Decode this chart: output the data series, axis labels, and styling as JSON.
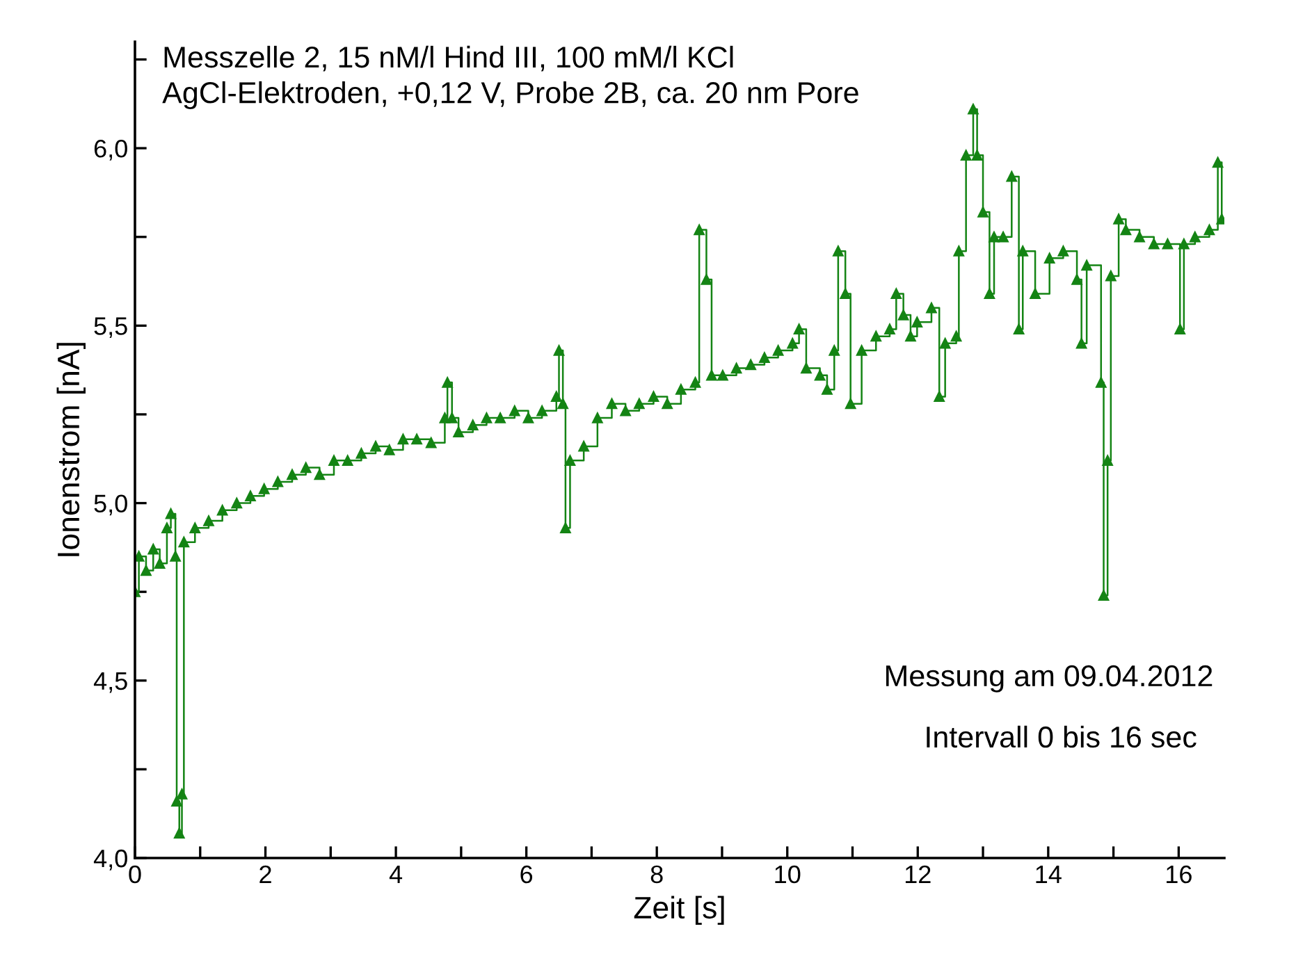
{
  "chart_data": {
    "type": "step",
    "title": "Messzelle 2, 15 nM/l Hind III, 100 mM/l KCl\nAgCl-Elektroden, +0,12 V, Probe 2B, ca. 20 nm Pore",
    "xlabel": "Zeit [s]",
    "ylabel": "Ionenstrom [nA]",
    "annotations": [
      "Messung am 09.04.2012",
      "Intervall 0 bis 16 sec"
    ],
    "x": [
      0.0,
      0.06,
      0.17,
      0.28,
      0.38,
      0.49,
      0.55,
      0.62,
      0.64,
      0.68,
      0.72,
      0.75,
      0.92,
      1.13,
      1.34,
      1.56,
      1.77,
      1.98,
      2.19,
      2.41,
      2.62,
      2.83,
      3.05,
      3.26,
      3.47,
      3.69,
      3.9,
      4.11,
      4.32,
      4.54,
      4.75,
      4.79,
      4.86,
      4.96,
      5.18,
      5.39,
      5.6,
      5.82,
      6.03,
      6.24,
      6.46,
      6.5,
      6.56,
      6.6,
      6.67,
      6.88,
      7.09,
      7.31,
      7.52,
      7.73,
      7.95,
      8.16,
      8.37,
      8.59,
      8.65,
      8.76,
      8.84,
      9.01,
      9.22,
      9.44,
      9.65,
      9.86,
      10.08,
      10.18,
      10.29,
      10.5,
      10.61,
      10.72,
      10.78,
      10.89,
      10.97,
      11.14,
      11.36,
      11.57,
      11.67,
      11.78,
      11.89,
      11.99,
      12.21,
      12.33,
      12.42,
      12.59,
      12.63,
      12.74,
      12.85,
      12.91,
      13.0,
      13.1,
      13.17,
      13.31,
      13.44,
      13.55,
      13.61,
      13.8,
      14.02,
      14.23,
      14.44,
      14.51,
      14.59,
      14.81,
      14.85,
      14.91,
      14.96,
      15.08,
      15.19,
      15.4,
      15.62,
      15.83,
      16.02,
      16.08,
      16.25,
      16.47,
      16.6,
      16.66
    ],
    "series": [
      {
        "color": "#148414",
        "values": [
          4.75,
          4.85,
          4.81,
          4.87,
          4.83,
          4.93,
          4.97,
          4.85,
          4.16,
          4.07,
          4.18,
          4.89,
          4.93,
          4.95,
          4.98,
          5.0,
          5.02,
          5.04,
          5.06,
          5.08,
          5.1,
          5.08,
          5.12,
          5.12,
          5.14,
          5.16,
          5.15,
          5.18,
          5.18,
          5.17,
          5.24,
          5.34,
          5.24,
          5.2,
          5.22,
          5.24,
          5.24,
          5.26,
          5.24,
          5.26,
          5.3,
          5.43,
          5.28,
          4.93,
          5.12,
          5.16,
          5.24,
          5.28,
          5.26,
          5.28,
          5.3,
          5.28,
          5.32,
          5.34,
          5.77,
          5.63,
          5.36,
          5.36,
          5.38,
          5.39,
          5.41,
          5.43,
          5.45,
          5.49,
          5.38,
          5.36,
          5.32,
          5.43,
          5.71,
          5.59,
          5.28,
          5.43,
          5.47,
          5.49,
          5.59,
          5.53,
          5.47,
          5.51,
          5.55,
          5.3,
          5.45,
          5.47,
          5.71,
          5.98,
          6.11,
          5.98,
          5.82,
          5.59,
          5.75,
          5.75,
          5.92,
          5.49,
          5.71,
          5.59,
          5.69,
          5.71,
          5.63,
          5.45,
          5.67,
          5.34,
          4.74,
          5.12,
          5.64,
          5.8,
          5.77,
          5.75,
          5.73,
          5.73,
          5.49,
          5.73,
          5.75,
          5.77,
          5.96,
          5.8
        ]
      }
    ],
    "marker": "triangle",
    "line_style": "solid",
    "xlim": [
      0,
      16.7
    ],
    "ylim": [
      4.0,
      6.3
    ],
    "xticks": [
      {
        "value": 0,
        "label": "0"
      },
      {
        "value": 1,
        "label": null
      },
      {
        "value": 2,
        "label": "2"
      },
      {
        "value": 3,
        "label": null
      },
      {
        "value": 4,
        "label": "4"
      },
      {
        "value": 5,
        "label": null
      },
      {
        "value": 6,
        "label": "6"
      },
      {
        "value": 7,
        "label": null
      },
      {
        "value": 8,
        "label": "8"
      },
      {
        "value": 9,
        "label": null
      },
      {
        "value": 10,
        "label": "10"
      },
      {
        "value": 11,
        "label": null
      },
      {
        "value": 12,
        "label": "12"
      },
      {
        "value": 13,
        "label": null
      },
      {
        "value": 14,
        "label": "14"
      },
      {
        "value": 15,
        "label": null
      },
      {
        "value": 16,
        "label": "16"
      }
    ],
    "yticks": [
      {
        "value": 4.0,
        "label": "4,0"
      },
      {
        "value": 4.25,
        "label": null
      },
      {
        "value": 4.5,
        "label": "4,5"
      },
      {
        "value": 4.75,
        "label": null
      },
      {
        "value": 5.0,
        "label": "5,0"
      },
      {
        "value": 5.25,
        "label": null
      },
      {
        "value": 5.5,
        "label": "5,5"
      },
      {
        "value": 5.75,
        "label": null
      },
      {
        "value": 6.0,
        "label": "6,0"
      },
      {
        "value": 6.25,
        "label": null
      }
    ],
    "grid": false,
    "legend": false
  }
}
